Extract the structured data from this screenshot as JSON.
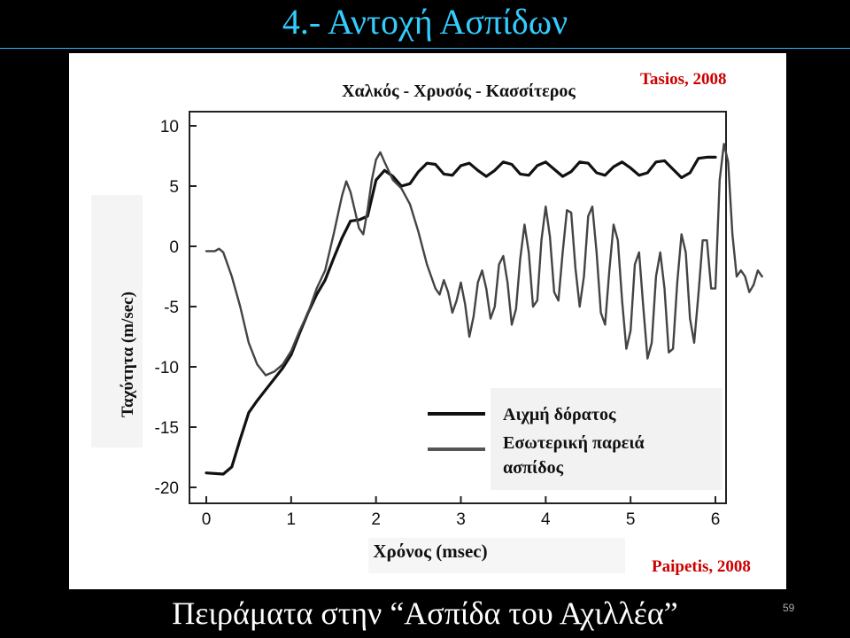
{
  "slide": {
    "title": "4.- Αντοχή Ασπίδων",
    "caption": "Πειράματα στην “Ασπίδα του Αχιλλέα”",
    "page_number": "59",
    "title_color": "#33ccff",
    "background": "#000000"
  },
  "credits": {
    "top": "Tasios, 2008",
    "bottom": "Paipetis, 2008",
    "color": "#cc0000"
  },
  "chart_data": {
    "type": "line",
    "title": "Χαλκός - Χρυσός - Κασσίτερος",
    "xlabel": "Χρόνος  (msec)",
    "ylabel": "Ταχύτητα  (m/sec)",
    "xlim": [
      0,
      6
    ],
    "ylim": [
      -20,
      10
    ],
    "xticks": [
      0,
      1,
      2,
      3,
      4,
      5,
      6
    ],
    "yticks": [
      10,
      5,
      0,
      -5,
      -10,
      -15,
      -20
    ],
    "grid": false,
    "legend_position": "bottom-right",
    "series": [
      {
        "name": "Αιχμή δόρατος",
        "color": "#111111",
        "points": [
          [
            0.0,
            -18.8
          ],
          [
            0.2,
            -18.9
          ],
          [
            0.3,
            -18.3
          ],
          [
            0.4,
            -16.0
          ],
          [
            0.5,
            -13.8
          ],
          [
            0.6,
            -12.8
          ],
          [
            0.7,
            -11.9
          ],
          [
            0.8,
            -11.0
          ],
          [
            0.9,
            -10.1
          ],
          [
            1.0,
            -9.0
          ],
          [
            1.1,
            -7.2
          ],
          [
            1.2,
            -5.5
          ],
          [
            1.3,
            -4.0
          ],
          [
            1.4,
            -2.8
          ],
          [
            1.5,
            -1.0
          ],
          [
            1.6,
            0.7
          ],
          [
            1.7,
            2.1
          ],
          [
            1.8,
            2.2
          ],
          [
            1.9,
            2.5
          ],
          [
            2.0,
            5.5
          ],
          [
            2.1,
            6.3
          ],
          [
            2.2,
            5.8
          ],
          [
            2.3,
            5.0
          ],
          [
            2.4,
            5.2
          ],
          [
            2.5,
            6.2
          ],
          [
            2.6,
            6.9
          ],
          [
            2.7,
            6.8
          ],
          [
            2.8,
            6.0
          ],
          [
            2.9,
            5.9
          ],
          [
            3.0,
            6.7
          ],
          [
            3.1,
            6.9
          ],
          [
            3.2,
            6.3
          ],
          [
            3.3,
            5.8
          ],
          [
            3.4,
            6.3
          ],
          [
            3.5,
            7.0
          ],
          [
            3.6,
            6.8
          ],
          [
            3.7,
            6.0
          ],
          [
            3.8,
            5.9
          ],
          [
            3.9,
            6.7
          ],
          [
            4.0,
            7.0
          ],
          [
            4.1,
            6.4
          ],
          [
            4.2,
            5.8
          ],
          [
            4.3,
            6.2
          ],
          [
            4.4,
            7.0
          ],
          [
            4.5,
            6.9
          ],
          [
            4.6,
            6.1
          ],
          [
            4.7,
            5.9
          ],
          [
            4.8,
            6.6
          ],
          [
            4.9,
            7.0
          ],
          [
            5.0,
            6.5
          ],
          [
            5.1,
            5.9
          ],
          [
            5.2,
            6.1
          ],
          [
            5.3,
            7.0
          ],
          [
            5.4,
            7.1
          ],
          [
            5.5,
            6.4
          ],
          [
            5.6,
            5.7
          ],
          [
            5.7,
            6.1
          ],
          [
            5.8,
            7.3
          ],
          [
            5.9,
            7.4
          ],
          [
            6.0,
            7.4
          ]
        ]
      },
      {
        "name": "Εσωτερική παρειά ασπίδος",
        "color": "#444444",
        "points": [
          [
            0.0,
            -0.4
          ],
          [
            0.1,
            -0.4
          ],
          [
            0.15,
            -0.2
          ],
          [
            0.2,
            -0.5
          ],
          [
            0.3,
            -2.5
          ],
          [
            0.4,
            -5.0
          ],
          [
            0.5,
            -8.0
          ],
          [
            0.6,
            -9.8
          ],
          [
            0.7,
            -10.7
          ],
          [
            0.8,
            -10.4
          ],
          [
            0.9,
            -9.8
          ],
          [
            1.0,
            -8.7
          ],
          [
            1.1,
            -7.0
          ],
          [
            1.2,
            -5.5
          ],
          [
            1.3,
            -3.5
          ],
          [
            1.4,
            -2.0
          ],
          [
            1.5,
            1.0
          ],
          [
            1.6,
            4.2
          ],
          [
            1.65,
            5.4
          ],
          [
            1.7,
            4.5
          ],
          [
            1.8,
            1.5
          ],
          [
            1.85,
            1.0
          ],
          [
            1.9,
            3.0
          ],
          [
            1.95,
            5.5
          ],
          [
            2.0,
            7.2
          ],
          [
            2.05,
            7.8
          ],
          [
            2.1,
            7.0
          ],
          [
            2.2,
            5.5
          ],
          [
            2.3,
            4.8
          ],
          [
            2.4,
            3.5
          ],
          [
            2.5,
            1.2
          ],
          [
            2.6,
            -1.5
          ],
          [
            2.7,
            -3.5
          ],
          [
            2.75,
            -4.0
          ],
          [
            2.8,
            -2.8
          ],
          [
            2.85,
            -3.8
          ],
          [
            2.9,
            -5.5
          ],
          [
            2.95,
            -4.5
          ],
          [
            3.0,
            -3.0
          ],
          [
            3.05,
            -4.8
          ],
          [
            3.1,
            -7.5
          ],
          [
            3.15,
            -5.8
          ],
          [
            3.2,
            -3.0
          ],
          [
            3.25,
            -2.0
          ],
          [
            3.3,
            -3.5
          ],
          [
            3.35,
            -6.0
          ],
          [
            3.4,
            -5.0
          ],
          [
            3.45,
            -1.5
          ],
          [
            3.5,
            -0.8
          ],
          [
            3.55,
            -3.0
          ],
          [
            3.6,
            -6.5
          ],
          [
            3.65,
            -5.2
          ],
          [
            3.7,
            -1.0
          ],
          [
            3.75,
            1.8
          ],
          [
            3.8,
            -0.5
          ],
          [
            3.85,
            -5.0
          ],
          [
            3.9,
            -4.5
          ],
          [
            3.95,
            0.5
          ],
          [
            4.0,
            3.3
          ],
          [
            4.05,
            0.8
          ],
          [
            4.1,
            -3.8
          ],
          [
            4.15,
            -4.5
          ],
          [
            4.2,
            -0.5
          ],
          [
            4.25,
            3.0
          ],
          [
            4.3,
            2.8
          ],
          [
            4.35,
            -1.8
          ],
          [
            4.4,
            -5.0
          ],
          [
            4.45,
            -2.5
          ],
          [
            4.5,
            2.5
          ],
          [
            4.55,
            3.3
          ],
          [
            4.6,
            -0.5
          ],
          [
            4.65,
            -5.5
          ],
          [
            4.7,
            -6.5
          ],
          [
            4.75,
            -2.0
          ],
          [
            4.8,
            1.8
          ],
          [
            4.85,
            0.5
          ],
          [
            4.9,
            -4.5
          ],
          [
            4.95,
            -8.5
          ],
          [
            5.0,
            -7.0
          ],
          [
            5.05,
            -1.5
          ],
          [
            5.1,
            -0.5
          ],
          [
            5.15,
            -5.0
          ],
          [
            5.2,
            -9.3
          ],
          [
            5.25,
            -8.0
          ],
          [
            5.3,
            -2.5
          ],
          [
            5.35,
            -0.5
          ],
          [
            5.4,
            -3.5
          ],
          [
            5.45,
            -8.8
          ],
          [
            5.5,
            -8.5
          ],
          [
            5.55,
            -3.0
          ],
          [
            5.6,
            1.0
          ],
          [
            5.65,
            -0.5
          ],
          [
            5.7,
            -6.0
          ],
          [
            5.75,
            -8.0
          ],
          [
            5.8,
            -4.0
          ],
          [
            5.85,
            0.5
          ],
          [
            5.9,
            0.5
          ],
          [
            5.95,
            -3.5
          ],
          [
            6.0,
            -3.5
          ],
          [
            6.05,
            5.5
          ],
          [
            6.1,
            8.5
          ],
          [
            6.15,
            7.0
          ],
          [
            6.2,
            1.0
          ],
          [
            6.25,
            -2.5
          ],
          [
            6.3,
            -2.0
          ],
          [
            6.35,
            -2.5
          ],
          [
            6.4,
            -3.8
          ],
          [
            6.45,
            -3.2
          ],
          [
            6.5,
            -2.0
          ],
          [
            6.55,
            -2.5
          ]
        ]
      }
    ]
  }
}
